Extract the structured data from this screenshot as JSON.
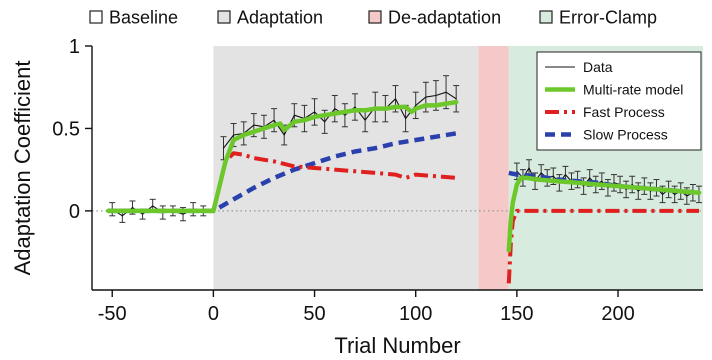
{
  "chart_data": {
    "type": "line",
    "title": "",
    "xlabel": "Trial Number",
    "ylabel": "Adaptation Coefficient",
    "xlim": [
      -60,
      242
    ],
    "ylim": [
      -0.48,
      1.0
    ],
    "xticks": [
      -50,
      0,
      50,
      100,
      150,
      200
    ],
    "yticks": [
      0,
      0.5,
      1
    ],
    "zero_line": "dotted",
    "phases": [
      {
        "name": "Baseline",
        "start": -60,
        "end": 0,
        "color": "#ffffff"
      },
      {
        "name": "Adaptation",
        "start": 0,
        "end": 131,
        "color": "#e3e3e3"
      },
      {
        "name": "De-adaptation",
        "start": 131,
        "end": 146,
        "color": "#f6c9c9"
      },
      {
        "name": "Error-Clamp",
        "start": 146,
        "end": 242,
        "color": "#d8ebdf"
      }
    ],
    "legend_position": "top-right",
    "series": [
      {
        "name": "Data",
        "style": "thin-line-with-errorbars",
        "color": "#111111",
        "segments": [
          {
            "x": [
              -50,
              -45,
              -40,
              -35,
              -30,
              -25,
              -20,
              -15,
              -10,
              -5
            ],
            "y": [
              0.01,
              -0.03,
              0.02,
              -0.02,
              0.03,
              -0.01,
              0.0,
              -0.02,
              0.01,
              0.0
            ],
            "err": [
              0.04,
              0.04,
              0.04,
              0.03,
              0.04,
              0.04,
              0.03,
              0.04,
              0.04,
              0.03
            ]
          },
          {
            "x": [
              5,
              10,
              15,
              20,
              25,
              30,
              35,
              40,
              45,
              50,
              55,
              60,
              65,
              70,
              75,
              80,
              85,
              90,
              95,
              100,
              105,
              110,
              115,
              120
            ],
            "y": [
              0.38,
              0.46,
              0.47,
              0.52,
              0.51,
              0.55,
              0.46,
              0.58,
              0.56,
              0.6,
              0.54,
              0.62,
              0.58,
              0.63,
              0.55,
              0.63,
              0.62,
              0.68,
              0.56,
              0.64,
              0.69,
              0.7,
              0.72,
              0.68
            ],
            "err": [
              0.07,
              0.07,
              0.07,
              0.07,
              0.07,
              0.07,
              0.06,
              0.07,
              0.08,
              0.08,
              0.07,
              0.08,
              0.07,
              0.08,
              0.07,
              0.09,
              0.08,
              0.08,
              0.08,
              0.08,
              0.09,
              0.09,
              0.1,
              0.08
            ]
          },
          {
            "x": [
              150,
              153,
              156,
              159,
              162,
              165,
              168,
              171,
              174,
              177,
              180,
              183,
              186,
              189,
              192,
              195,
              198,
              201,
              204,
              207,
              210,
              213,
              216,
              219,
              222,
              225,
              228,
              231,
              234,
              237,
              240
            ],
            "y": [
              0.24,
              0.2,
              0.26,
              0.18,
              0.23,
              0.2,
              0.21,
              0.17,
              0.22,
              0.18,
              0.19,
              0.15,
              0.2,
              0.16,
              0.18,
              0.14,
              0.17,
              0.16,
              0.13,
              0.16,
              0.12,
              0.15,
              0.12,
              0.14,
              0.1,
              0.13,
              0.1,
              0.12,
              0.09,
              0.11,
              0.1
            ],
            "err": [
              0.05,
              0.05,
              0.05,
              0.05,
              0.05,
              0.05,
              0.05,
              0.05,
              0.05,
              0.05,
              0.05,
              0.05,
              0.05,
              0.05,
              0.05,
              0.05,
              0.05,
              0.05,
              0.05,
              0.05,
              0.05,
              0.05,
              0.05,
              0.05,
              0.05,
              0.05,
              0.05,
              0.05,
              0.05,
              0.05,
              0.05
            ]
          }
        ]
      },
      {
        "name": "Multi-rate model",
        "style": "thick-solid",
        "color": "#6cc82a",
        "segments": [
          {
            "x": [
              -52,
              0,
              3,
              6,
              10,
              15,
              20,
              25,
              30,
              33,
              35,
              38,
              40,
              45,
              50,
              55,
              60,
              65,
              70,
              75,
              80,
              85,
              90,
              95,
              98,
              100,
              105,
              110,
              115,
              120
            ],
            "y": [
              0.0,
              0.0,
              0.15,
              0.3,
              0.43,
              0.46,
              0.48,
              0.5,
              0.52,
              0.53,
              0.49,
              0.52,
              0.54,
              0.55,
              0.57,
              0.58,
              0.59,
              0.6,
              0.61,
              0.61,
              0.62,
              0.62,
              0.63,
              0.63,
              0.6,
              0.62,
              0.64,
              0.64,
              0.65,
              0.66
            ]
          },
          {
            "x": [
              146,
              147,
              148,
              150,
              152,
              155,
              160,
              170,
              180,
              190,
              200,
              210,
              220,
              230,
              240
            ],
            "y": [
              -0.24,
              -0.06,
              0.05,
              0.16,
              0.2,
              0.2,
              0.19,
              0.18,
              0.17,
              0.16,
              0.15,
              0.14,
              0.13,
              0.12,
              0.11
            ]
          }
        ]
      },
      {
        "name": "Fast Process",
        "style": "dash-dot",
        "color": "#e01f1f",
        "segments": [
          {
            "x": [
              -52,
              0,
              3,
              6,
              10,
              15,
              20,
              30,
              40,
              50,
              60,
              70,
              80,
              90,
              95,
              100,
              110,
              120
            ],
            "y": [
              0.0,
              0.0,
              0.15,
              0.3,
              0.35,
              0.34,
              0.32,
              0.3,
              0.27,
              0.26,
              0.25,
              0.24,
              0.23,
              0.22,
              0.2,
              0.22,
              0.21,
              0.2
            ]
          },
          {
            "x": [
              146,
              147,
              148,
              150,
              152,
              155,
              160,
              170,
              180,
              200,
              220,
              240
            ],
            "y": [
              -0.44,
              -0.2,
              -0.06,
              0.0,
              0.0,
              0.0,
              0.0,
              0.0,
              0.0,
              0.0,
              0.0,
              0.0
            ]
          }
        ]
      },
      {
        "name": "Slow Process",
        "style": "dashed",
        "color": "#2a41ad",
        "segments": [
          {
            "x": [
              -52,
              0,
              10,
              20,
              30,
              40,
              50,
              60,
              70,
              80,
              90,
              100,
              110,
              120
            ],
            "y": [
              0.0,
              0.0,
              0.07,
              0.14,
              0.2,
              0.25,
              0.29,
              0.33,
              0.36,
              0.38,
              0.41,
              0.43,
              0.45,
              0.47
            ]
          },
          {
            "x": [
              146,
              150,
              160,
              170,
              180,
              190,
              200,
              210,
              220,
              230,
              240
            ],
            "y": [
              0.23,
              0.22,
              0.21,
              0.19,
              0.18,
              0.17,
              0.15,
              0.14,
              0.13,
              0.12,
              0.11
            ]
          }
        ]
      }
    ]
  }
}
